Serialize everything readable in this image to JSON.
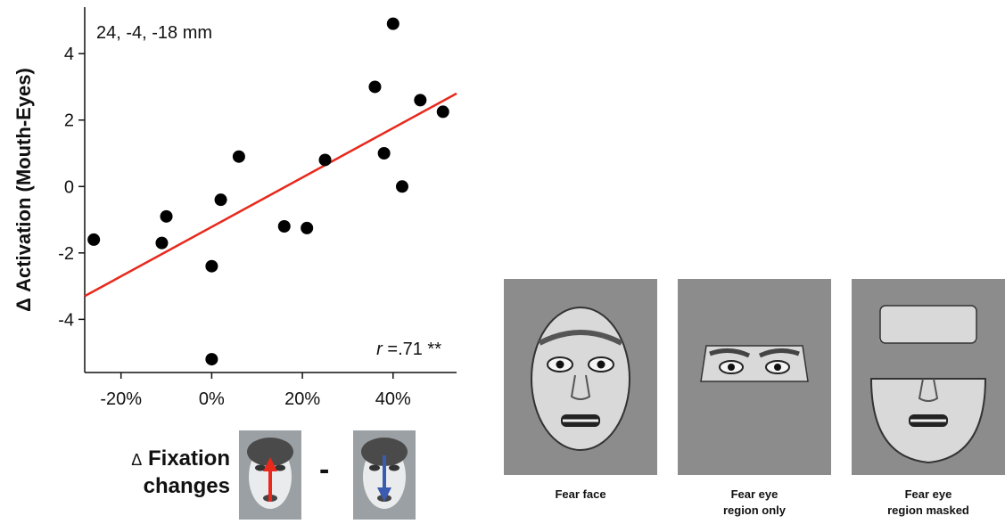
{
  "chart_data": {
    "type": "scatter",
    "title": "",
    "ylabel": "Δ Activation (Mouth-Eyes)",
    "xlabel_prefix": "Δ",
    "xlabel_lines": [
      "Fixation",
      "changes"
    ],
    "xlim": [
      -0.28,
      0.54
    ],
    "ylim": [
      -5.6,
      5.4
    ],
    "x_ticks": [
      -0.2,
      0,
      0.2,
      0.4
    ],
    "x_tick_labels": [
      "-20%",
      "0%",
      "20%",
      "40%"
    ],
    "y_ticks": [
      -4,
      -2,
      0,
      2,
      4
    ],
    "y_tick_labels": [
      "-4",
      "-2",
      "0",
      "2",
      "4"
    ],
    "points": [
      {
        "x": -0.26,
        "y": -1.6
      },
      {
        "x": -0.11,
        "y": -1.7
      },
      {
        "x": -0.1,
        "y": -0.9
      },
      {
        "x": 0.0,
        "y": -2.4
      },
      {
        "x": 0.0,
        "y": -5.2
      },
      {
        "x": 0.02,
        "y": -0.4
      },
      {
        "x": 0.06,
        "y": 0.9
      },
      {
        "x": 0.16,
        "y": -1.2
      },
      {
        "x": 0.21,
        "y": -1.25
      },
      {
        "x": 0.25,
        "y": 0.8
      },
      {
        "x": 0.36,
        "y": 3.0
      },
      {
        "x": 0.38,
        "y": 1.0
      },
      {
        "x": 0.4,
        "y": 4.9
      },
      {
        "x": 0.42,
        "y": 0.0
      },
      {
        "x": 0.46,
        "y": 2.6
      },
      {
        "x": 0.51,
        "y": 2.25
      }
    ],
    "fit_line": {
      "x": [
        -0.28,
        0.54
      ],
      "y": [
        -3.3,
        2.8
      ],
      "color": "#e8291c"
    },
    "point_color": "#000000",
    "annotations": {
      "coords": "24, -4, -18 mm",
      "r_label": "r",
      "r_value": " =.71 **"
    },
    "grid": false
  },
  "fixation_panel": {
    "minus": "-",
    "arrow_up_color": "#e8291c",
    "arrow_down_color": "#3a5bb0"
  },
  "stimuli": [
    {
      "caption_lines": [
        "Fear face"
      ]
    },
    {
      "caption_lines": [
        "Fear eye",
        "region only"
      ]
    },
    {
      "caption_lines": [
        "Fear eye",
        "region masked"
      ]
    }
  ]
}
